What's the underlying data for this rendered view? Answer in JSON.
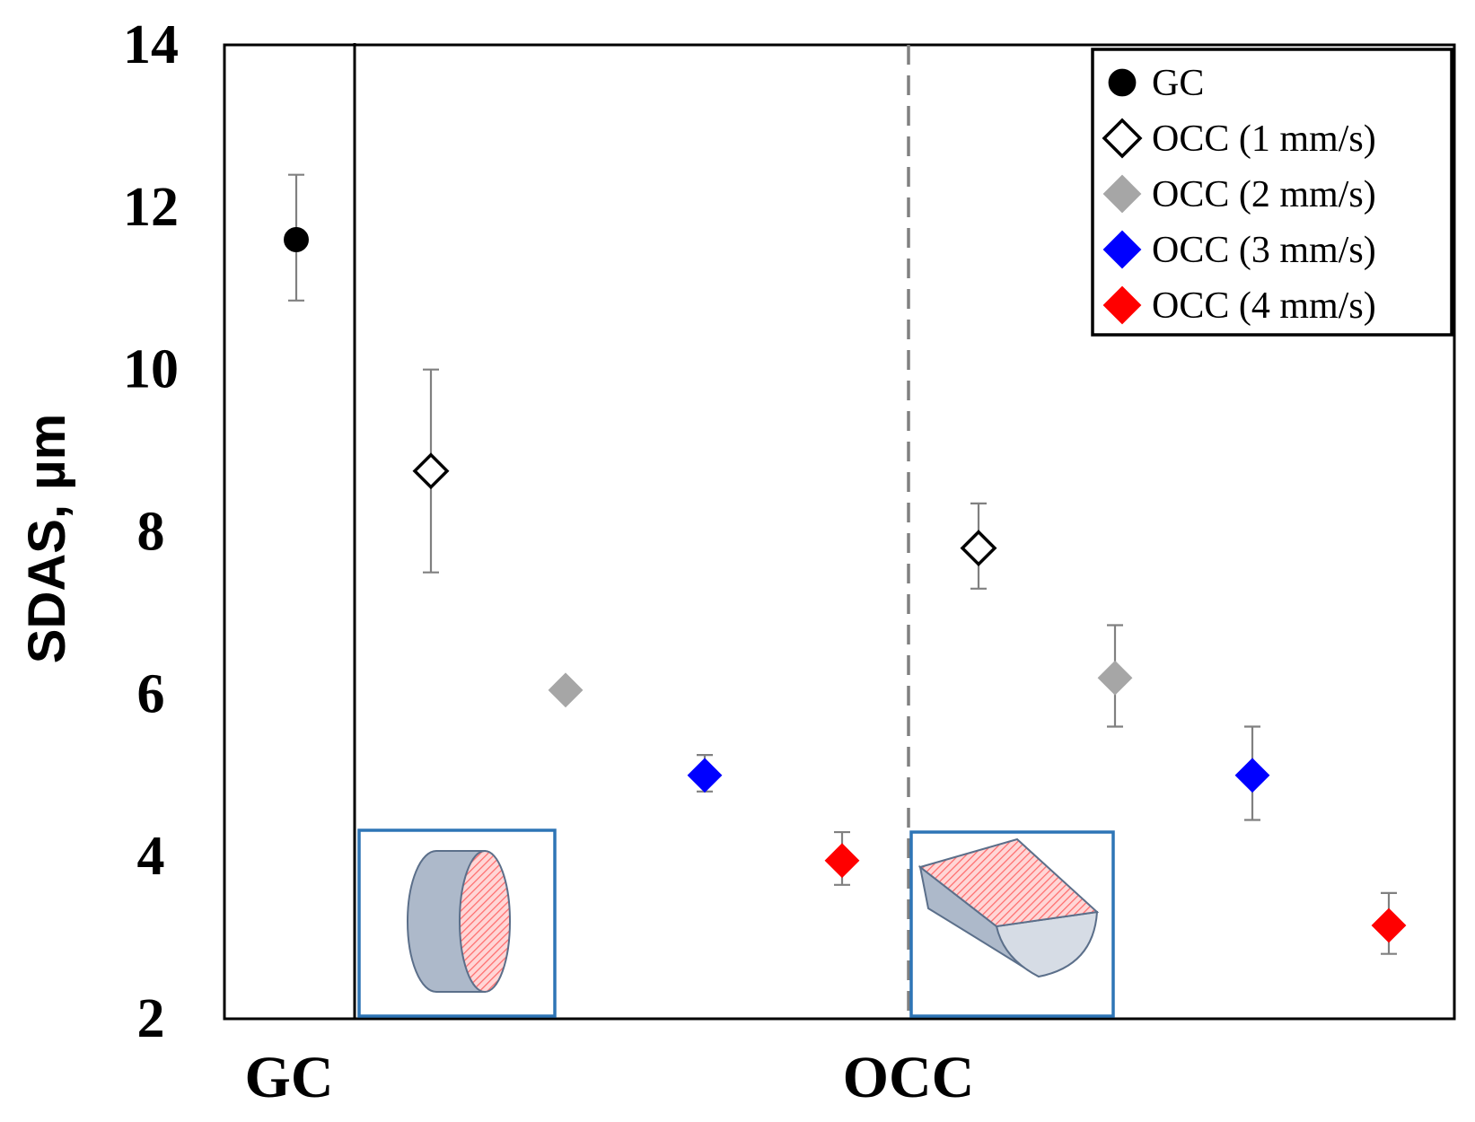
{
  "chart_data": {
    "type": "scatter",
    "ylabel": "SDAS, µm",
    "xlabel": "",
    "ylim": [
      2,
      14
    ],
    "yticks": [
      "2",
      "4",
      "6",
      "8",
      "10",
      "12",
      "14"
    ],
    "categories": [
      "GC",
      "OCC"
    ],
    "legend_position": "top-right",
    "series": [
      {
        "name": "GC",
        "marker": "circle",
        "fill": "#000000",
        "stroke": "#000000",
        "points": [
          {
            "group": "GC",
            "y": 11.6,
            "err_low": 10.85,
            "err_high": 12.4
          }
        ]
      },
      {
        "name": "OCC (1 mm/s)",
        "marker": "diamond",
        "fill": "#ffffff",
        "stroke": "#000000",
        "points": [
          {
            "group": "left",
            "y": 8.75,
            "err_low": 7.5,
            "err_high": 10.0
          },
          {
            "group": "right",
            "y": 7.8,
            "err_low": 7.3,
            "err_high": 8.35
          }
        ]
      },
      {
        "name": "OCC (2 mm/s)",
        "marker": "diamond",
        "fill": "#a6a6a6",
        "stroke": "#a6a6a6",
        "points": [
          {
            "group": "left",
            "y": 6.05,
            "err_low": 6.05,
            "err_high": 6.05
          },
          {
            "group": "right",
            "y": 6.2,
            "err_low": 5.6,
            "err_high": 6.85
          }
        ]
      },
      {
        "name": "OCC (3 mm/s)",
        "marker": "diamond",
        "fill": "#0000ff",
        "stroke": "#0000ff",
        "points": [
          {
            "group": "left",
            "y": 5.0,
            "err_low": 4.8,
            "err_high": 5.25
          },
          {
            "group": "right",
            "y": 5.0,
            "err_low": 4.45,
            "err_high": 5.6
          }
        ]
      },
      {
        "name": "OCC (4 mm/s)",
        "marker": "diamond",
        "fill": "#ff0000",
        "stroke": "#ff0000",
        "points": [
          {
            "group": "left",
            "y": 3.95,
            "err_low": 3.65,
            "err_high": 4.3
          },
          {
            "group": "right",
            "y": 3.15,
            "err_low": 2.8,
            "err_high": 3.55
          }
        ]
      }
    ],
    "colors": {
      "inset_border": "#2e75b6",
      "sample_body": "#adb9ca",
      "sample_section": "#ff9999",
      "divider_dashed": "#808080"
    }
  }
}
